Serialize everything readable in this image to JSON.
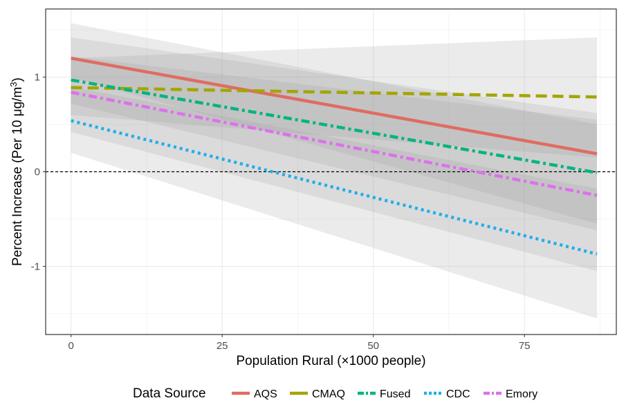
{
  "chart_data": {
    "type": "line",
    "xlabel": "Population Rural (×1000 people)",
    "ylabel_prefix": "Percent Increase (Per 10 μg/m",
    "ylabel_superscript": "3",
    "ylabel_suffix": ")",
    "x_ticks": [
      0,
      25,
      50,
      75
    ],
    "x_tick_labels": [
      "0",
      "25",
      "50",
      "75"
    ],
    "y_ticks": [
      -1,
      0,
      1
    ],
    "y_tick_labels": [
      "-1",
      "0",
      "1"
    ],
    "xlim": [
      -4.2,
      90.2
    ],
    "ylim": [
      -1.72,
      1.72
    ],
    "grid": true,
    "reference_line": {
      "y": 0,
      "style": "dashed",
      "color": "#000000"
    },
    "legend": {
      "title": "Data Source",
      "position": "bottom"
    },
    "series": [
      {
        "name": "AQS",
        "color": "#E06C62",
        "dash": "solid",
        "x": [
          0,
          87
        ],
        "y": [
          1.2,
          0.19
        ],
        "ribbon": {
          "x": [
            0,
            87
          ],
          "lower": [
            1.0,
            -0.55
          ],
          "upper": [
            1.42,
            0.62
          ]
        }
      },
      {
        "name": "CMAQ",
        "color": "#A3A500",
        "dash": "long-dash",
        "x": [
          0,
          87
        ],
        "y": [
          0.89,
          0.79
        ],
        "ribbon": {
          "x": [
            0,
            87
          ],
          "lower": [
            0.6,
            0.15
          ],
          "upper": [
            1.2,
            1.42
          ]
        }
      },
      {
        "name": "Fused",
        "color": "#00B481",
        "dash": "dot-dash",
        "x": [
          0,
          87
        ],
        "y": [
          0.97,
          -0.01
        ],
        "ribbon": {
          "x": [
            0,
            87
          ],
          "lower": [
            0.72,
            -0.62
          ],
          "upper": [
            1.22,
            0.55
          ]
        }
      },
      {
        "name": "CDC",
        "color": "#20AEEA",
        "dash": "dotted",
        "x": [
          0,
          87
        ],
        "y": [
          0.54,
          -0.87
        ],
        "ribbon": {
          "x": [
            0,
            87
          ],
          "lower": [
            0.2,
            -1.55
          ],
          "upper": [
            0.9,
            -0.18
          ]
        }
      },
      {
        "name": "Emory",
        "color": "#DD70EE",
        "dash": "dot-dash",
        "x": [
          0,
          87
        ],
        "y": [
          0.84,
          -0.25
        ],
        "ribbon": {
          "x": [
            0,
            87
          ],
          "lower": [
            0.42,
            -1.05
          ],
          "upper": [
            1.57,
            0.5
          ]
        }
      }
    ]
  }
}
